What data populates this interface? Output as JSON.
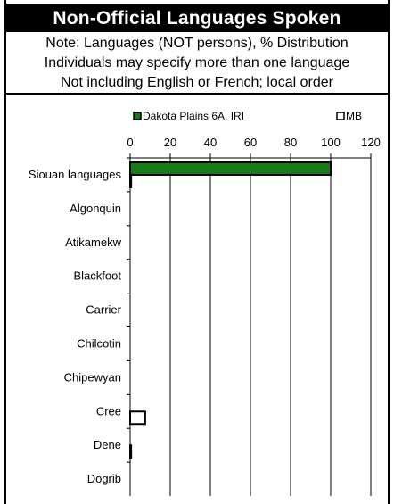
{
  "title": "Non-Official Languages Spoken",
  "notes": [
    "Note: Languages (NOT persons), % Distribution",
    "Individuals may specify more than one language",
    "Not including English or French; local order"
  ],
  "colors": {
    "series_1": "#1a7a1a",
    "series_2": "#ffffff",
    "outline": "#000000"
  },
  "chart_data": {
    "type": "bar",
    "orientation": "horizontal",
    "categories": [
      "Siouan languages",
      "Algonquin",
      "Atikamekw",
      "Blackfoot",
      "Carrier",
      "Chilcotin",
      "Chipewyan",
      "Cree",
      "Dene",
      "Dogrib"
    ],
    "series": [
      {
        "name": "Dakota Plains 6A, IRI",
        "values": [
          100,
          0,
          0,
          0,
          0,
          0,
          0,
          0,
          0,
          0
        ]
      },
      {
        "name": "MB",
        "values": [
          0.5,
          0,
          0,
          0,
          0,
          0,
          0,
          7.5,
          0.5,
          0
        ]
      }
    ],
    "x_ticks": [
      "0",
      "20",
      "40",
      "60",
      "80",
      "100",
      "120"
    ],
    "xlim": [
      0,
      120
    ],
    "grid": true,
    "legend_position": "top"
  }
}
